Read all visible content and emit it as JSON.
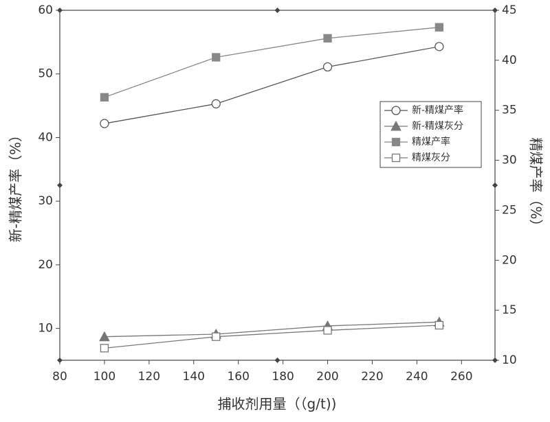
{
  "chart_data": {
    "type": "line",
    "x_label": "捕收剂用量（（g/t))",
    "y_label": "新-精煤产率（%）",
    "y2_label": "精煤产率（%）",
    "x": [
      100,
      150,
      200,
      250
    ],
    "series": [
      {
        "name": "新-精煤产率",
        "color": "#555555",
        "marker": "circle",
        "filled": false,
        "values": [
          42.2,
          45.3,
          51.1,
          54.3
        ]
      },
      {
        "name": "新-精煤灰分",
        "color": "#777777",
        "marker": "triangle",
        "filled": true,
        "values": [
          8.7,
          9.1,
          10.4,
          11.0
        ]
      },
      {
        "name": "精煤产率",
        "color": "#888888",
        "marker": "square",
        "filled": true,
        "axis": "y2",
        "values": [
          36.3,
          40.3,
          42.2,
          43.3
        ]
      },
      {
        "name": "精煤灰分",
        "color": "#777777",
        "marker": "square",
        "filled": false,
        "values": [
          6.9,
          8.7,
          9.7,
          10.5
        ]
      }
    ],
    "xlim": [
      80,
      275
    ],
    "xticks": [
      80,
      100,
      120,
      140,
      160,
      180,
      200,
      220,
      240,
      260
    ],
    "ylim": [
      5,
      60
    ],
    "yticks": [
      10,
      20,
      30,
      40,
      50,
      60
    ],
    "y2lim": [
      10,
      45
    ],
    "y2ticks": [
      10,
      15,
      20,
      25,
      30,
      35,
      40,
      45
    ]
  }
}
